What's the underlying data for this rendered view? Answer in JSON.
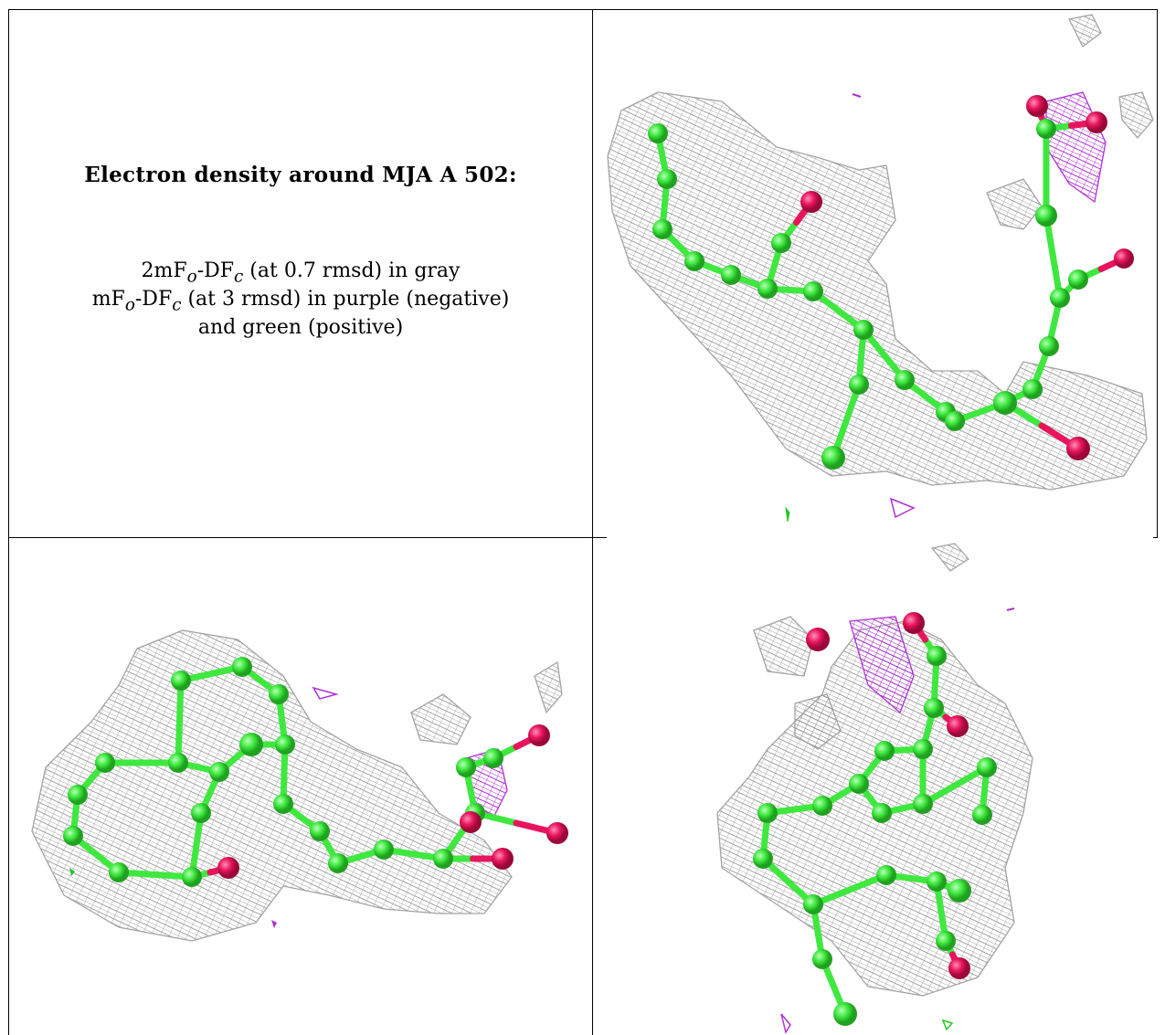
{
  "caption": {
    "title": "Electron density around MJA A 502:",
    "line1": {
      "pre": "2mF",
      "sub1": "o",
      "mid": "-DF",
      "sub2": "c",
      "post": " (at 0.7 rmsd) in gray"
    },
    "line2": {
      "pre": "mF",
      "sub1": "o",
      "mid": "-DF",
      "sub2": "c",
      "post": " (at 3 rmsd) in purple (negative)"
    },
    "line3": "and green (positive)"
  },
  "colors": {
    "carbon": "#3fe83f",
    "oxygen": "#e8155e",
    "mesh_2fofc": "#9a9a9a",
    "mesh_negative": "#b030d8",
    "mesh_positive": "#22c822",
    "grid": "#000000"
  },
  "panels": [
    {
      "name": "view-top-right"
    },
    {
      "name": "view-bottom-left"
    },
    {
      "name": "view-bottom-right"
    }
  ]
}
